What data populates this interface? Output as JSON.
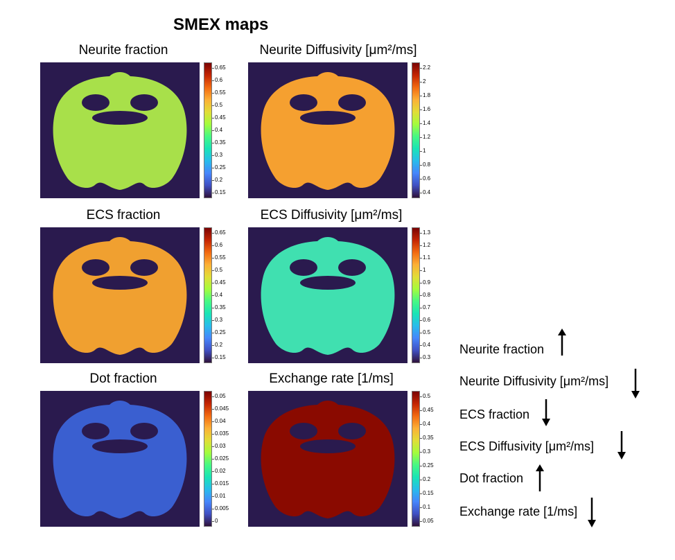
{
  "title": "SMEX maps",
  "panels": [
    {
      "title": "Neurite fraction",
      "ticks": [
        "0.65",
        "0.6",
        "0.55",
        "0.5",
        "0.45",
        "0.4",
        "0.35",
        "0.3",
        "0.25",
        "0.2",
        "0.15"
      ],
      "dominant_color": "#a8e04a"
    },
    {
      "title": "Neurite Diffusivity [μm²/ms]",
      "ticks": [
        "2.2",
        "2",
        "1.8",
        "1.6",
        "1.4",
        "1.2",
        "1",
        "0.8",
        "0.6",
        "0.4"
      ],
      "dominant_color": "#f5a030"
    },
    {
      "title": "ECS fraction",
      "ticks": [
        "0.65",
        "0.6",
        "0.55",
        "0.5",
        "0.45",
        "0.4",
        "0.35",
        "0.3",
        "0.25",
        "0.2",
        "0.15"
      ],
      "dominant_color": "#f0a030"
    },
    {
      "title": "ECS Diffusivity [μm²/ms]",
      "ticks": [
        "1.3",
        "1.2",
        "1.1",
        "1",
        "0.9",
        "0.8",
        "0.7",
        "0.6",
        "0.5",
        "0.4",
        "0.3"
      ],
      "dominant_color": "#40e0b0"
    },
    {
      "title": "Dot fraction",
      "ticks": [
        "0.05",
        "0.045",
        "0.04",
        "0.035",
        "0.03",
        "0.025",
        "0.02",
        "0.015",
        "0.01",
        "0.005",
        "0"
      ],
      "dominant_color": "#3a5fd0"
    },
    {
      "title": "Exchange rate [1/ms]",
      "ticks": [
        "0.5",
        "0.45",
        "0.4",
        "0.35",
        "0.3",
        "0.25",
        "0.2",
        "0.15",
        "0.1",
        "0.05"
      ],
      "dominant_color": "#8a0a00"
    }
  ],
  "summary": [
    {
      "label": "Neurite fraction",
      "direction": "up"
    },
    {
      "label": "Neurite Diffusivity [μm²/ms]",
      "direction": "down"
    },
    {
      "label": "ECS fraction",
      "direction": "down"
    },
    {
      "label": "ECS Diffusivity [μm²/ms]",
      "direction": "down"
    },
    {
      "label": "Dot fraction",
      "direction": "up"
    },
    {
      "label": "Exchange rate [1/ms]",
      "direction": "down"
    }
  ],
  "colormap": [
    "#7a0403",
    "#c42503",
    "#f26a11",
    "#fcb036",
    "#e1dd37",
    "#a4fc3c",
    "#46f884",
    "#1ae4b6",
    "#28bceb",
    "#4686fb",
    "#4050c3",
    "#30123b"
  ]
}
